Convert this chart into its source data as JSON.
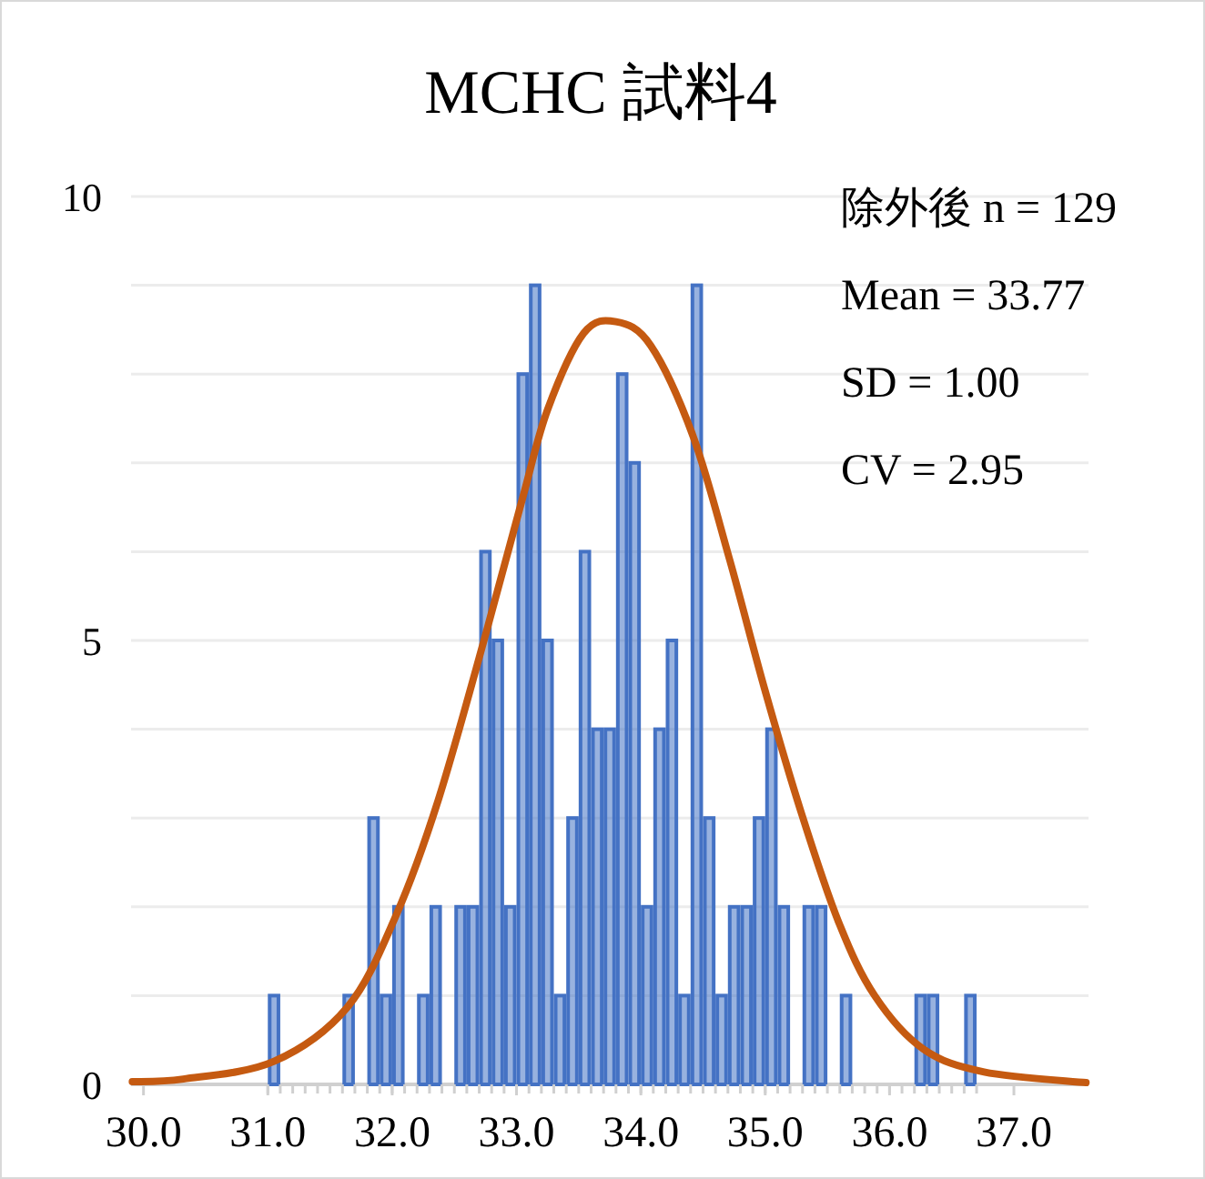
{
  "chart_data": {
    "type": "histogram",
    "title": "MCHC 試料4",
    "annotations": [
      "除外後 n = 129",
      "Mean = 33.77",
      "SD = 1.00",
      "CV = 2.95"
    ],
    "series": [
      {
        "color": "#4472c4",
        "bins": [
          31.0,
          31.1,
          31.2,
          31.3,
          31.4,
          31.5,
          31.6,
          31.7,
          31.8,
          31.9,
          32.0,
          32.1,
          32.2,
          32.3,
          32.4,
          32.5,
          32.6,
          32.7,
          32.8,
          32.9,
          33.0,
          33.1,
          33.2,
          33.3,
          33.4,
          33.5,
          33.6,
          33.7,
          33.8,
          33.9,
          34.0,
          34.1,
          34.2,
          34.3,
          34.4,
          34.5,
          34.6,
          34.7,
          34.8,
          34.9,
          35.0,
          35.1,
          35.2,
          35.3,
          35.4,
          35.5,
          35.6,
          35.7,
          35.8,
          35.9,
          36.0,
          36.1,
          36.2,
          36.3,
          36.4,
          36.5,
          36.6,
          36.7
        ],
        "values": [
          1,
          0,
          0,
          0,
          0,
          0,
          1,
          0,
          3,
          1,
          2,
          0,
          1,
          2,
          0,
          2,
          2,
          6,
          5,
          2,
          8,
          9,
          5,
          1,
          3,
          6,
          4,
          4,
          8,
          7,
          2,
          4,
          5,
          1,
          9,
          3,
          1,
          2,
          2,
          3,
          4,
          2,
          0,
          2,
          2,
          0,
          1,
          0,
          0,
          0,
          0,
          0,
          1,
          1,
          0,
          0,
          1
        ]
      },
      {
        "type": "line",
        "color": "#c55a11",
        "x": [
          29.91,
          30.32,
          31.05,
          31.64,
          32.03,
          32.37,
          32.76,
          33.05,
          33.25,
          33.54,
          33.8,
          34.08,
          34.42,
          34.71,
          35.0,
          35.29,
          35.59,
          35.88,
          36.27,
          36.76,
          37.58
        ],
        "values": [
          0.03,
          0.06,
          0.26,
          0.87,
          1.9,
          3.2,
          5.11,
          6.61,
          7.6,
          8.46,
          8.59,
          8.32,
          7.3,
          5.93,
          4.43,
          3.06,
          1.83,
          1.0,
          0.4,
          0.14,
          0.02
        ]
      }
    ],
    "xlim": [
      29.9,
      37.6
    ],
    "xticks": [
      {
        "value": 30,
        "label": "30.0"
      },
      {
        "value": 31,
        "label": "31.0"
      },
      {
        "value": 32,
        "label": "32.0"
      },
      {
        "value": 33,
        "label": "33.0"
      },
      {
        "value": 34,
        "label": "34.0"
      },
      {
        "value": 35,
        "label": "35.0"
      },
      {
        "value": 36,
        "label": "36.0"
      },
      {
        "value": 37,
        "label": "37.0"
      }
    ],
    "ylim": [
      0,
      10
    ],
    "yticks": [
      0,
      {
        "value": 1,
        "label": null
      },
      {
        "value": 2,
        "label": null
      },
      {
        "value": 3,
        "label": null
      },
      {
        "value": 4,
        "label": null
      },
      5,
      {
        "value": 6,
        "label": null
      },
      {
        "value": 7,
        "label": null
      },
      {
        "value": 8,
        "label": null
      },
      {
        "value": 9,
        "label": null
      },
      10
    ],
    "grid": "y"
  }
}
